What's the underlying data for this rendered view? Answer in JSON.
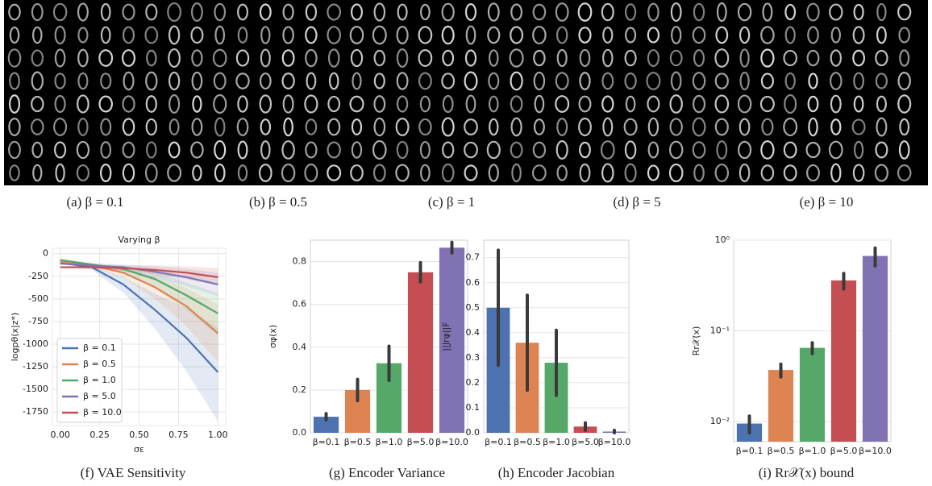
{
  "image_captions": [
    "(a) β = 0.1",
    "(b) β = 0.5",
    "(c) β = 1",
    "(d) β = 5",
    "(e) β = 10"
  ],
  "chart_data": [
    {
      "type": "line",
      "title": "Varying β",
      "caption": "(f) VAE Sensitivity",
      "xlabel": "σε",
      "ylabel": "logpθ(x|z*)",
      "x": [
        0,
        0.2,
        0.4,
        0.6,
        0.8,
        1.0
      ],
      "series": [
        {
          "name": "β = 0.1",
          "color": "#4c72b0",
          "values": [
            -100,
            -150,
            -340,
            -620,
            -930,
            -1310
          ],
          "lower": [
            -110,
            -180,
            -430,
            -830,
            -1300,
            -1850
          ],
          "upper": [
            -90,
            -130,
            -260,
            -440,
            -600,
            -820
          ]
        },
        {
          "name": "β = 0.5",
          "color": "#dd8452",
          "values": [
            -90,
            -130,
            -210,
            -370,
            -580,
            -880
          ],
          "lower": [
            -100,
            -150,
            -270,
            -500,
            -800,
            -1200
          ],
          "upper": [
            -80,
            -110,
            -160,
            -260,
            -380,
            -560
          ]
        },
        {
          "name": "β = 1.0",
          "color": "#55a868",
          "values": [
            -70,
            -120,
            -170,
            -280,
            -460,
            -660
          ],
          "lower": [
            -80,
            -140,
            -220,
            -380,
            -620,
            -900
          ],
          "upper": [
            -60,
            -100,
            -130,
            -200,
            -320,
            -440
          ]
        },
        {
          "name": "β = 5.0",
          "color": "#8172b3",
          "values": [
            -110,
            -130,
            -150,
            -200,
            -260,
            -340
          ],
          "lower": [
            -120,
            -150,
            -190,
            -270,
            -360,
            -470
          ],
          "upper": [
            -100,
            -110,
            -120,
            -140,
            -170,
            -210
          ]
        },
        {
          "name": "β = 10.0",
          "color": "#c44e52",
          "values": [
            -150,
            -150,
            -160,
            -180,
            -210,
            -260
          ],
          "lower": [
            -160,
            -170,
            -190,
            -230,
            -280,
            -350
          ],
          "upper": [
            -140,
            -130,
            -130,
            -130,
            -140,
            -160
          ]
        }
      ],
      "xlim": [
        -0.05,
        1.05
      ],
      "ylim": [
        -1900,
        60
      ],
      "xticks": [
        {
          "value": 0,
          "label": "0.00"
        },
        {
          "value": 0.25,
          "label": "0.25"
        },
        {
          "value": 0.5,
          "label": "0.50"
        },
        {
          "value": 0.75,
          "label": "0.75"
        },
        {
          "value": 1,
          "label": "1.00"
        }
      ],
      "yticks": [
        0,
        -250,
        -500,
        -750,
        -1000,
        -1250,
        -1500,
        -1750
      ],
      "grid": true,
      "legend": "lower left"
    },
    {
      "type": "bar",
      "caption": "(g) Encoder Variance",
      "ylabel": "σφ(x)",
      "categories": [
        "β=0.1",
        "β=0.5",
        "β=1.0",
        "β=5.0",
        "β=10.0"
      ],
      "values": [
        0.075,
        0.2,
        0.325,
        0.75,
        0.865
      ],
      "errors": [
        0.015,
        0.05,
        0.08,
        0.045,
        0.025
      ],
      "colors": [
        "#4c72b0",
        "#dd8452",
        "#55a868",
        "#c44e52",
        "#8172b3"
      ],
      "ylim": [
        0,
        0.9
      ],
      "yticks": [
        {
          "value": 0,
          "label": "0.0"
        },
        {
          "value": 0.2,
          "label": "0.2"
        },
        {
          "value": 0.4,
          "label": "0.4"
        },
        {
          "value": 0.6,
          "label": "0.6"
        },
        {
          "value": 0.8,
          "label": "0.8"
        }
      ],
      "grid": true
    },
    {
      "type": "bar",
      "caption": "(h) Encoder Jacobian",
      "ylabel": "||Jrφ||F",
      "categories": [
        "β=0.1",
        "β=0.5",
        "β=1.0",
        "β=5.0",
        "β=10.0"
      ],
      "values": [
        0.5,
        0.36,
        0.28,
        0.025,
        0.005
      ],
      "errors": [
        0.23,
        0.19,
        0.13,
        0.015,
        0.005
      ],
      "colors": [
        "#4c72b0",
        "#dd8452",
        "#55a868",
        "#c44e52",
        "#8172b3"
      ],
      "ylim": [
        0,
        0.77
      ],
      "yticks": [
        {
          "value": 0,
          "label": "0.0"
        },
        0.1,
        0.2,
        0.3,
        0.4,
        0.5,
        0.6,
        0.7
      ],
      "grid": true
    },
    {
      "type": "bar",
      "caption": "(i) Rr𝒳(x) bound",
      "ylabel": "Rr𝒳(x)",
      "log_scale": true,
      "categories": [
        "β=0.1",
        "β=0.5",
        "β=1.0",
        "β=5.0",
        "β=10.0"
      ],
      "values": [
        0.0095,
        0.037,
        0.065,
        0.36,
        0.67
      ],
      "errors": [
        0.002,
        0.006,
        0.009,
        0.07,
        0.15
      ],
      "colors": [
        "#4c72b0",
        "#dd8452",
        "#55a868",
        "#c44e52",
        "#8172b3"
      ],
      "ylim": [
        0.006,
        1.0
      ],
      "yticks": [
        {
          "value": 0.01,
          "label": "10⁻²"
        },
        {
          "value": 0.1,
          "label": "10⁻¹"
        },
        {
          "value": 1,
          "label": "10⁰"
        }
      ],
      "grid": true
    }
  ]
}
